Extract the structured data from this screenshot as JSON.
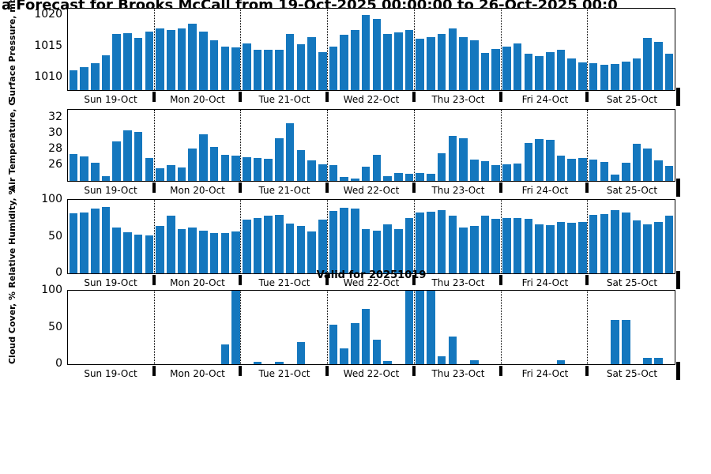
{
  "title": "a Forecast for Brooks McCall from 19-Oct-2025 00:00:00 to 26-Oct-2025 00:0",
  "bar_color": "#1477BE",
  "day_labels": [
    "Sun 19-Oct",
    "Mon 20-Oct",
    "Tue 21-Oct",
    "Wed 22-Oct",
    "Thu 23-Oct",
    "Fri 24-Oct",
    "Sat 25-Oct"
  ],
  "chart_data": [
    {
      "type": "bar",
      "title": "",
      "ylabel": "Surface Pressure, mb",
      "ylim": [
        1008,
        1021
      ],
      "yticks": [
        1010,
        1015,
        1020
      ],
      "xticklabels": [
        "Sun 19-Oct",
        "Mon 20-Oct",
        "Tue 21-Oct",
        "Wed 22-Oct",
        "Thu 23-Oct",
        "Fri 24-Oct",
        "Sat 25-Oct"
      ],
      "values": [
        1011.2,
        1011.6,
        1012.3,
        1013.6,
        1017.0,
        1017.1,
        1016.3,
        1017.4,
        1017.8,
        1017.6,
        1017.9,
        1018.6,
        1017.3,
        1015.9,
        1015.0,
        1014.8,
        1015.5,
        1014.4,
        1014.4,
        1014.5,
        1017.0,
        1015.3,
        1016.4,
        1014.1,
        1015.0,
        1016.9,
        1017.6,
        1020.0,
        1019.4,
        1017.0,
        1017.2,
        1017.6,
        1016.2,
        1016.4,
        1017.0,
        1017.8,
        1016.4,
        1015.9,
        1013.9,
        1014.6,
        1015.0,
        1015.4,
        1013.8,
        1013.4,
        1014.1,
        1014.5,
        1013.0,
        1012.4,
        1012.3,
        1012.1,
        1012.2,
        1012.6,
        1013.1,
        1016.3,
        1015.7,
        1013.8
      ]
    },
    {
      "type": "bar",
      "title": "",
      "ylabel": "Air Temperature, C",
      "ylim": [
        24,
        33
      ],
      "yticks": [
        26,
        28,
        30,
        32
      ],
      "xticklabels": [
        "Sun 19-Oct",
        "Mon 20-Oct",
        "Tue 21-Oct",
        "Wed 22-Oct",
        "Thu 23-Oct",
        "Fri 24-Oct",
        "Sat 25-Oct"
      ],
      "values": [
        27.4,
        27.1,
        26.3,
        24.6,
        29.0,
        30.4,
        30.2,
        26.9,
        25.6,
        26.0,
        25.7,
        28.1,
        29.9,
        28.3,
        27.3,
        27.2,
        27.0,
        26.9,
        26.8,
        29.4,
        31.3,
        27.9,
        26.6,
        26.1,
        26.0,
        24.5,
        24.3,
        25.8,
        27.3,
        24.6,
        25.0,
        24.9,
        25.0,
        24.9,
        27.5,
        29.7,
        29.4,
        26.7,
        26.5,
        26.0,
        26.1,
        26.2,
        28.8,
        29.3,
        29.2,
        27.2,
        26.8,
        26.9,
        26.7,
        26.4,
        24.8,
        26.3,
        28.7,
        28.1,
        26.6,
        25.9
      ]
    },
    {
      "type": "bar",
      "title": "",
      "ylabel": "Relative Humidity, %",
      "ylim": [
        0,
        100
      ],
      "yticks": [
        0,
        50,
        100
      ],
      "xticklabels": [
        "Sun 19-Oct",
        "Mon 20-Oct",
        "Tue 21-Oct",
        "Wed 22-Oct",
        "Thu 23-Oct",
        "Fri 24-Oct",
        "Sat 25-Oct"
      ],
      "values": [
        82,
        83,
        88,
        90,
        62,
        56,
        53,
        52,
        65,
        78,
        60,
        62,
        58,
        55,
        55,
        57,
        73,
        75,
        79,
        80,
        68,
        64,
        57,
        73,
        85,
        89,
        88,
        60,
        58,
        67,
        60,
        75,
        83,
        84,
        86,
        78,
        62,
        65,
        78,
        74,
        75,
        75,
        74,
        67,
        66,
        70,
        69,
        70,
        80,
        81,
        86,
        83,
        72,
        67,
        70,
        78
      ]
    },
    {
      "type": "bar",
      "title": "Valid for 20251019",
      "ylabel": "Cloud Cover, %",
      "ylim": [
        0,
        100
      ],
      "yticks": [
        0,
        50,
        100
      ],
      "xticklabels": [
        "Sun 19-Oct",
        "Mon 20-Oct",
        "Tue 21-Oct",
        "Wed 22-Oct",
        "Thu 23-Oct",
        "Fri 24-Oct",
        "Sat 25-Oct"
      ],
      "values": [
        0,
        0,
        0,
        0,
        0,
        0,
        0,
        0,
        0,
        0,
        0,
        0,
        0,
        0,
        27,
        100,
        0,
        3,
        0,
        3,
        0,
        30,
        0,
        0,
        54,
        21,
        56,
        75,
        33,
        4,
        0,
        100,
        100,
        100,
        11,
        38,
        0,
        5,
        0,
        0,
        0,
        0,
        0,
        0,
        0,
        5,
        0,
        0,
        0,
        0,
        60,
        60,
        0,
        9,
        9,
        0
      ]
    }
  ]
}
